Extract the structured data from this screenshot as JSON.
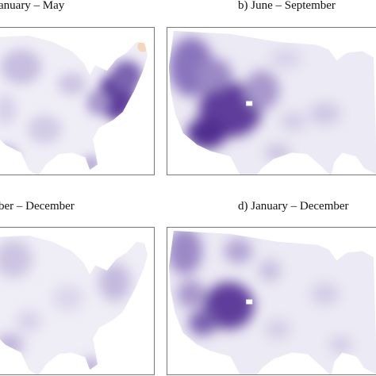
{
  "panels": [
    {
      "id": "a",
      "title": "anuary – May"
    },
    {
      "id": "b",
      "title": "b) June – September"
    },
    {
      "id": "c",
      "title": "ber – December"
    },
    {
      "id": "d",
      "title": "d) January – December"
    }
  ],
  "colors": {
    "land_base": "#ece9f4",
    "light": "#d8d2ea",
    "medium": "#a797cc",
    "dark": "#5e3e9b",
    "peach": "#f6d3b4",
    "frame": "#777777"
  }
}
